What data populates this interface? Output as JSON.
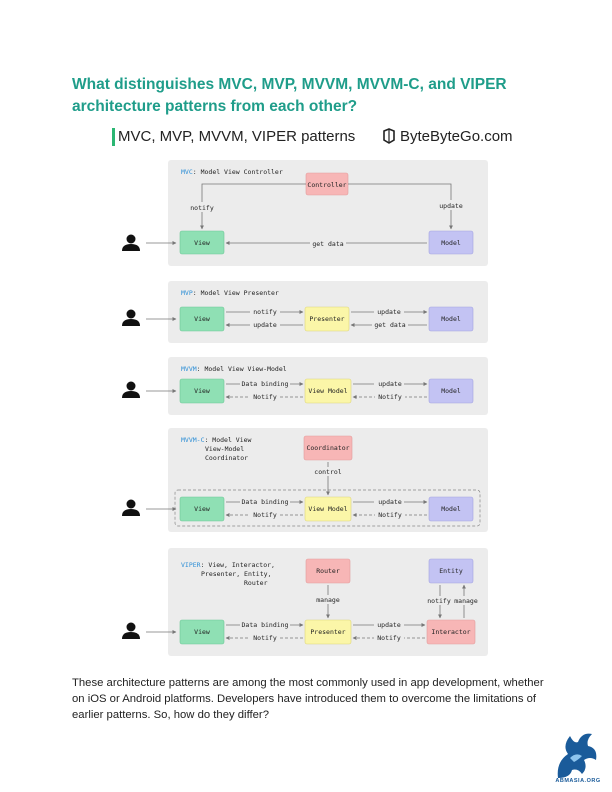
{
  "page": {
    "heading": "What distinguishes MVC, MVP, MVVM, MVVM-C, and VIPER architecture patterns from each other?",
    "body": "These architecture patterns are among the most commonly used in app development, whether on iOS or Android platforms. Developers have introduced them to overcome the limitations of earlier patterns. So, how do they differ?",
    "logo_text": "ABMASIA.ORG"
  },
  "figure": {
    "title": "MVC, MVP, MVVM, VIPER patterns",
    "brand": "ByteByteGo.com",
    "colors": {
      "view": "#8fe0b4",
      "controller": "#f7b6b6",
      "model": "#c3c3f3",
      "presenter": "#fbf6a8",
      "entity": "#c3c3f3",
      "panel": "#ececec",
      "accent": "#2e8fd6"
    },
    "mvc": {
      "abbr": "MVC",
      "full": ": Model View Controller",
      "view": "View",
      "controller": "Controller",
      "model": "Model",
      "notify": "notify",
      "update": "update",
      "get_data": "get data"
    },
    "mvp": {
      "abbr": "MVP",
      "full": ": Model View Presenter",
      "view": "View",
      "presenter": "Presenter",
      "model": "Model",
      "notify": "notify",
      "update_left": "update",
      "update_right": "update",
      "get_data": "get data"
    },
    "mvvm": {
      "abbr": "MVVM",
      "full": ": Model View View-Model",
      "view": "View",
      "viewmodel": "View Model",
      "model": "Model",
      "data_binding": "Data binding",
      "notify_left": "Notify",
      "update": "update",
      "notify_right": "Notify"
    },
    "mvvmc": {
      "abbr": "MVVM-C",
      "full_lines": [
        ": Model View",
        "View-Model",
        "Coordinator"
      ],
      "coordinator": "Coordinator",
      "control": "control",
      "view": "View",
      "viewmodel": "View Model",
      "model": "Model",
      "data_binding": "Data binding",
      "notify_left": "Notify",
      "update": "update",
      "notify_right": "Notify"
    },
    "viper": {
      "abbr": "VIPER",
      "full_lines": [
        ": View, Interactor,",
        "Presenter, Entity,",
        "Router"
      ],
      "router": "Router",
      "entity": "Entity",
      "manage_left": "manage",
      "notify_entity": "notify",
      "manage_entity": "manage",
      "view": "View",
      "presenter": "Presenter",
      "interactor": "Interactor",
      "data_binding": "Data binding",
      "notify_left": "Notify",
      "update": "update",
      "notify_right": "Notify"
    }
  }
}
